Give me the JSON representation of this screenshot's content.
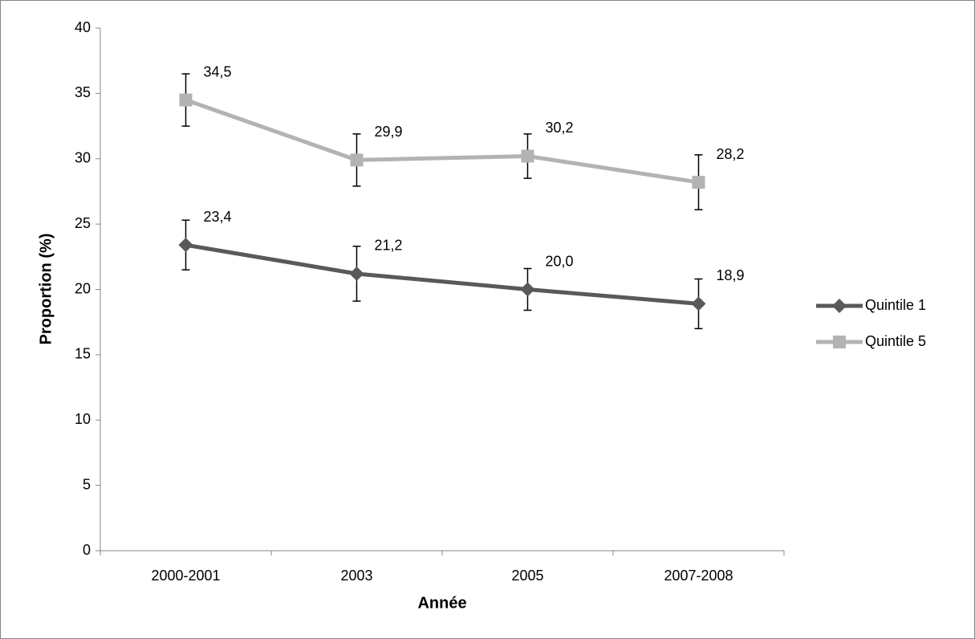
{
  "chart_data": {
    "type": "line",
    "x_label": "Année",
    "y_label": "Proportion (%)",
    "categories": [
      "2000-2001",
      "2003",
      "2005",
      "2007-2008"
    ],
    "series": [
      {
        "name": "Quintile 1",
        "color": "#595959",
        "marker": "diamond",
        "values": [
          23.4,
          21.2,
          20.0,
          18.9
        ],
        "value_labels": [
          "23,4",
          "21,2",
          "20,0",
          "18,9"
        ],
        "error": [
          1.9,
          2.1,
          1.6,
          1.9
        ]
      },
      {
        "name": "Quintile 5",
        "color": "#b3b3b3",
        "marker": "square",
        "values": [
          34.5,
          29.9,
          30.2,
          28.2
        ],
        "value_labels": [
          "34,5",
          "29,9",
          "30,2",
          "28,2"
        ],
        "error": [
          2.0,
          2.0,
          1.7,
          2.1
        ]
      }
    ],
    "ylim": [
      0,
      40
    ],
    "yticks": [
      0,
      5,
      10,
      15,
      20,
      25,
      30,
      35,
      40
    ],
    "grid": false,
    "legend": "right"
  }
}
